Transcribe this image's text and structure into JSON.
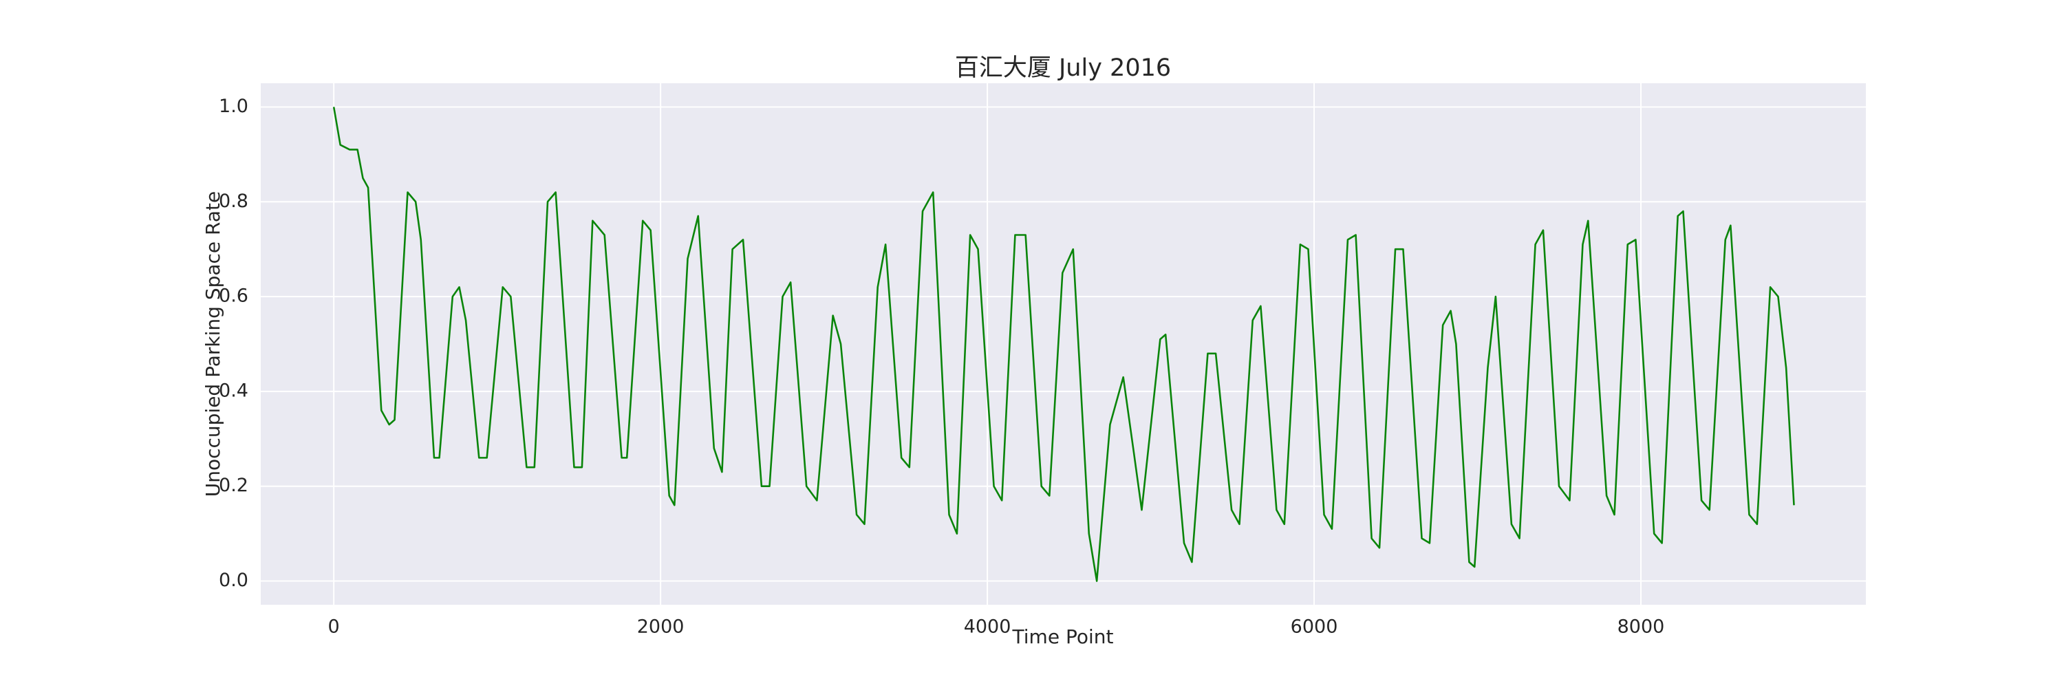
{
  "chart_data": {
    "type": "line",
    "title": "百汇大厦 July 2016",
    "x_label": "Time Point",
    "y_label": "Unoccupied Parking Space Rate",
    "color": "#0a850a",
    "grid": true,
    "xlim": [
      -447,
      9377
    ],
    "ylim": [
      -0.05,
      1.05
    ],
    "xticks": [
      0,
      2000,
      4000,
      6000,
      8000
    ],
    "yticks": [
      {
        "value": 0,
        "label": "0.0"
      },
      0.2,
      0.4,
      0.6,
      0.8,
      {
        "value": 1,
        "label": "1.0"
      }
    ],
    "x": [
      0,
      40,
      97,
      145,
      178,
      210,
      291,
      339,
      372,
      452,
      501,
      533,
      614,
      646,
      727,
      768,
      808,
      889,
      937,
      1034,
      1083,
      1180,
      1228,
      1309,
      1358,
      1471,
      1519,
      1584,
      1657,
      1762,
      1794,
      1891,
      1939,
      2053,
      2085,
      2166,
      2230,
      2327,
      2376,
      2440,
      2505,
      2618,
      2667,
      2747,
      2796,
      2893,
      2957,
      3055,
      3103,
      3200,
      3248,
      3329,
      3377,
      3474,
      3523,
      3604,
      3668,
      3766,
      3814,
      3895,
      3943,
      4040,
      4089,
      4170,
      4234,
      4331,
      4380,
      4460,
      4525,
      4622,
      4670,
      4751,
      4832,
      4897,
      4945,
      5058,
      5091,
      5204,
      5252,
      5349,
      5398,
      5495,
      5543,
      5624,
      5673,
      5770,
      5818,
      5915,
      5964,
      6061,
      6109,
      6206,
      6255,
      6352,
      6400,
      6497,
      6545,
      6659,
      6707,
      6788,
      6836,
      6869,
      6949,
      6982,
      7063,
      7111,
      7208,
      7257,
      7354,
      7402,
      7499,
      7564,
      7644,
      7677,
      7790,
      7838,
      7919,
      7968,
      8081,
      8129,
      8226,
      8259,
      8371,
      8420,
      8517,
      8549,
      8663,
      8711,
      8792,
      8840,
      8889,
      8937
    ],
    "values": [
      1.0,
      0.92,
      0.91,
      0.91,
      0.85,
      0.83,
      0.36,
      0.33,
      0.34,
      0.82,
      0.8,
      0.72,
      0.26,
      0.26,
      0.6,
      0.62,
      0.55,
      0.26,
      0.26,
      0.62,
      0.6,
      0.24,
      0.24,
      0.8,
      0.82,
      0.24,
      0.24,
      0.76,
      0.73,
      0.26,
      0.26,
      0.76,
      0.74,
      0.18,
      0.16,
      0.68,
      0.77,
      0.28,
      0.23,
      0.7,
      0.72,
      0.2,
      0.2,
      0.6,
      0.63,
      0.2,
      0.17,
      0.56,
      0.5,
      0.14,
      0.12,
      0.62,
      0.71,
      0.26,
      0.24,
      0.78,
      0.82,
      0.14,
      0.1,
      0.73,
      0.7,
      0.2,
      0.17,
      0.73,
      0.73,
      0.2,
      0.18,
      0.65,
      0.7,
      0.1,
      0.0,
      0.33,
      0.43,
      0.27,
      0.15,
      0.51,
      0.52,
      0.08,
      0.04,
      0.48,
      0.48,
      0.15,
      0.12,
      0.55,
      0.58,
      0.15,
      0.12,
      0.71,
      0.7,
      0.14,
      0.11,
      0.72,
      0.73,
      0.09,
      0.07,
      0.7,
      0.7,
      0.09,
      0.08,
      0.54,
      0.57,
      0.5,
      0.04,
      0.03,
      0.45,
      0.6,
      0.12,
      0.09,
      0.71,
      0.74,
      0.2,
      0.17,
      0.71,
      0.76,
      0.18,
      0.14,
      0.71,
      0.72,
      0.1,
      0.08,
      0.77,
      0.78,
      0.17,
      0.15,
      0.72,
      0.75,
      0.14,
      0.12,
      0.62,
      0.6,
      0.45,
      0.16
    ]
  }
}
